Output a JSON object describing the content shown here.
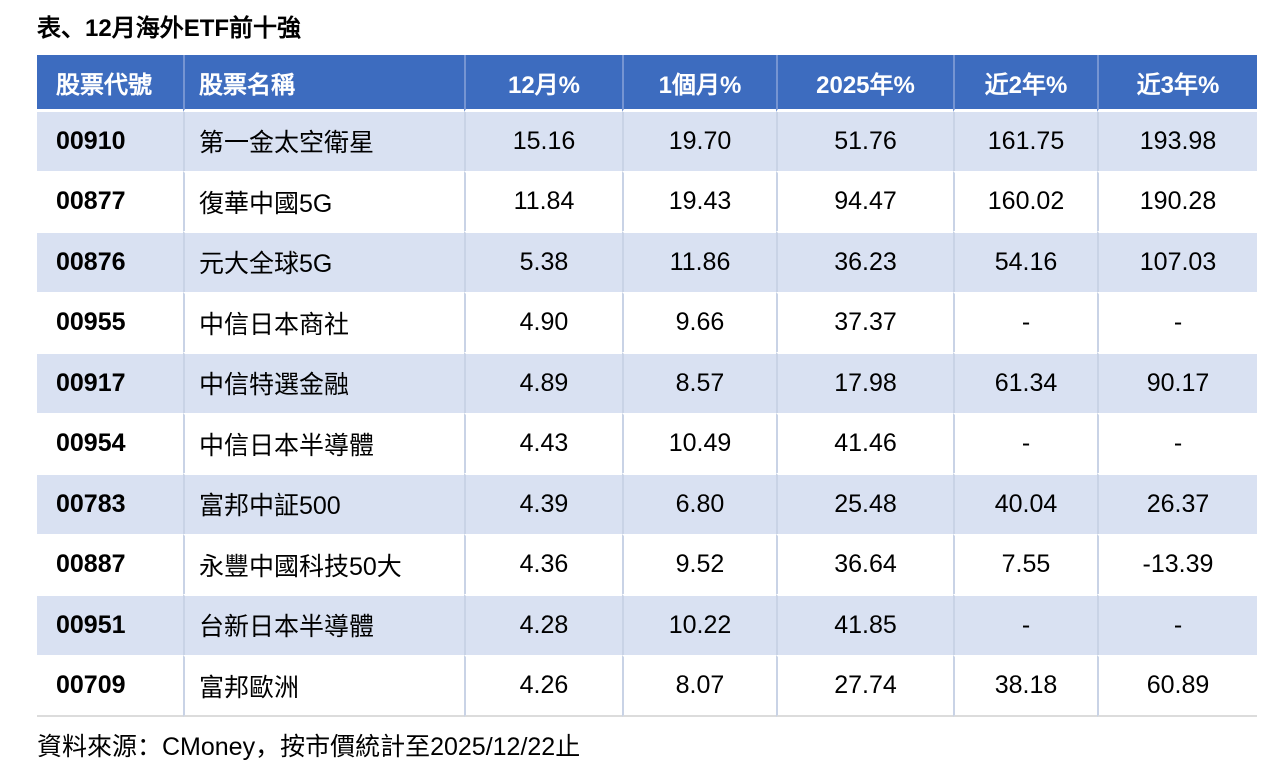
{
  "title": "表、12月海外ETF前十強",
  "source_note": "資料來源：CMoney，按市價統計至2025/12/22止",
  "colors": {
    "header_bg": "#3d6cbf",
    "header_text": "#ffffff",
    "header_divider": "#7695d2",
    "row_stripe_bg": "#d9e1f2",
    "row_plain_bg": "#ffffff",
    "body_divider": "#c9d3e6",
    "table_bottom_border": "#dcdcdc"
  },
  "chart_data": {
    "type": "table",
    "title": "表、12月海外ETF前十強",
    "columns": [
      "股票代號",
      "股票名稱",
      "12月%",
      "1個月%",
      "2025年%",
      "近2年%",
      "近3年%"
    ],
    "rows": [
      [
        "00910",
        "第一金太空衛星",
        "15.16",
        "19.70",
        "51.76",
        "161.75",
        "193.98"
      ],
      [
        "00877",
        "復華中國5G",
        "11.84",
        "19.43",
        "94.47",
        "160.02",
        "190.28"
      ],
      [
        "00876",
        "元大全球5G",
        "5.38",
        "11.86",
        "36.23",
        "54.16",
        "107.03"
      ],
      [
        "00955",
        "中信日本商社",
        "4.90",
        "9.66",
        "37.37",
        "-",
        "-"
      ],
      [
        "00917",
        "中信特選金融",
        "4.89",
        "8.57",
        "17.98",
        "61.34",
        "90.17"
      ],
      [
        "00954",
        "中信日本半導體",
        "4.43",
        "10.49",
        "41.46",
        "-",
        "-"
      ],
      [
        "00783",
        "富邦中証500",
        "4.39",
        "6.80",
        "25.48",
        "40.04",
        "26.37"
      ],
      [
        "00887",
        "永豐中國科技50大",
        "4.36",
        "9.52",
        "36.64",
        "7.55",
        "-13.39"
      ],
      [
        "00951",
        "台新日本半導體",
        "4.28",
        "10.22",
        "41.85",
        "-",
        "-"
      ],
      [
        "00709",
        "富邦歐洲",
        "4.26",
        "8.07",
        "27.74",
        "38.18",
        "60.89"
      ]
    ],
    "source": "資料來源：CMoney，按市價統計至2025/12/22止"
  }
}
